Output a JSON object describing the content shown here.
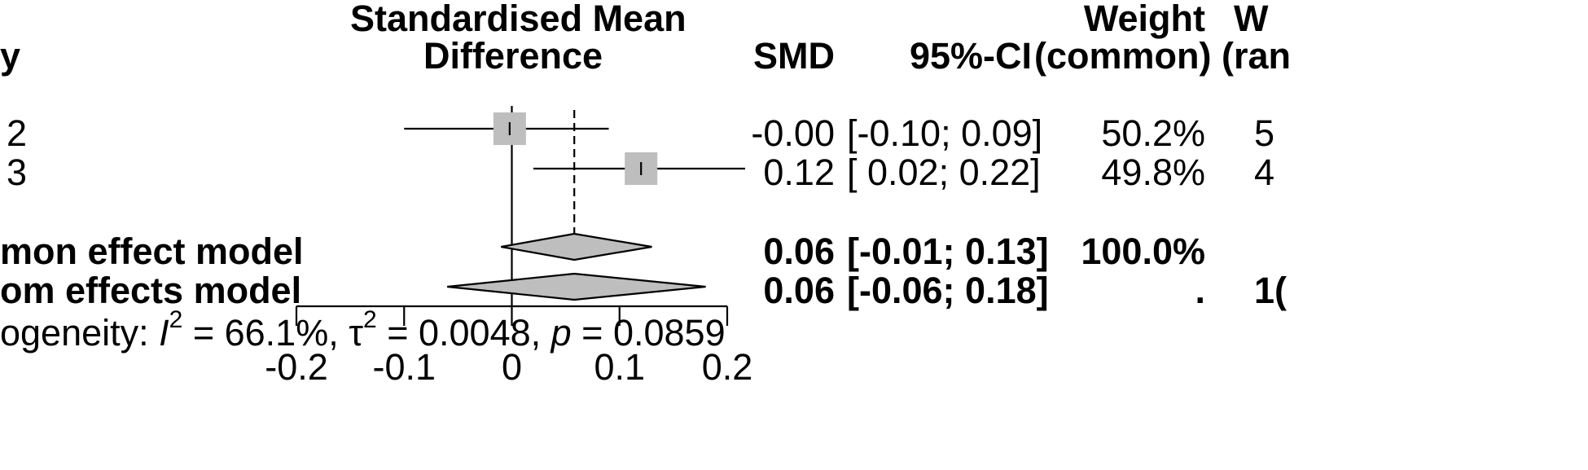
{
  "header": {
    "col_study_fragment": "y",
    "col_effect": "Standardised Mean",
    "col_effect_line2": "Difference",
    "col_smd": "SMD",
    "col_ci": "95%-CI",
    "col_weight_common": "Weight",
    "col_weight_common_line2": "(common)",
    "col_weight_random": "W",
    "col_weight_random_line2": "(ran"
  },
  "rows": [
    {
      "label": "2",
      "smd": "-0.00",
      "ci": "[-0.10; 0.09]",
      "w_common": "50.2%",
      "w_random": "5"
    },
    {
      "label": "3",
      "smd": "0.12",
      "ci": "[ 0.02; 0.22]",
      "w_common": "49.8%",
      "w_random": "4"
    }
  ],
  "pooled": [
    {
      "label": "mon effect model",
      "smd": "0.06",
      "ci": "[-0.01; 0.13]",
      "w_common": "100.0%",
      "w_random": ""
    },
    {
      "label": "om effects model",
      "smd": "0.06",
      "ci": "[-0.06; 0.18]",
      "w_common": ".",
      "w_random": "1("
    }
  ],
  "heterogeneity": {
    "prefix": "ogeneity: ",
    "i2_symbol": "I",
    "i2_exp": "2",
    "i2_value": " = 66.1%, ",
    "tau_symbol": "τ",
    "tau_exp": "2",
    "tau_value": " = 0.0048, ",
    "p_symbol": "p",
    "p_value": " = 0.0859"
  },
  "chart_data": {
    "type": "forest",
    "xlim": [
      -0.2,
      0.2
    ],
    "x_ticks": [
      -0.2,
      -0.1,
      0,
      0.1,
      0.2
    ],
    "x_tick_labels": [
      "-0.2",
      "-0.1",
      "0",
      "0.1",
      "0.2"
    ],
    "null_line": 0,
    "studies": [
      {
        "label": "2",
        "est": -0.002,
        "lower": -0.1,
        "upper": 0.09
      },
      {
        "label": "3",
        "est": 0.12,
        "lower": 0.02,
        "upper": 0.22
      }
    ],
    "common": {
      "est": 0.058,
      "lower": -0.01,
      "upper": 0.13
    },
    "random": {
      "est": 0.058,
      "lower": -0.06,
      "upper": 0.18
    },
    "colors": {
      "square": "#bebebe",
      "diamond": "#bebebe",
      "line": "#000000"
    }
  }
}
